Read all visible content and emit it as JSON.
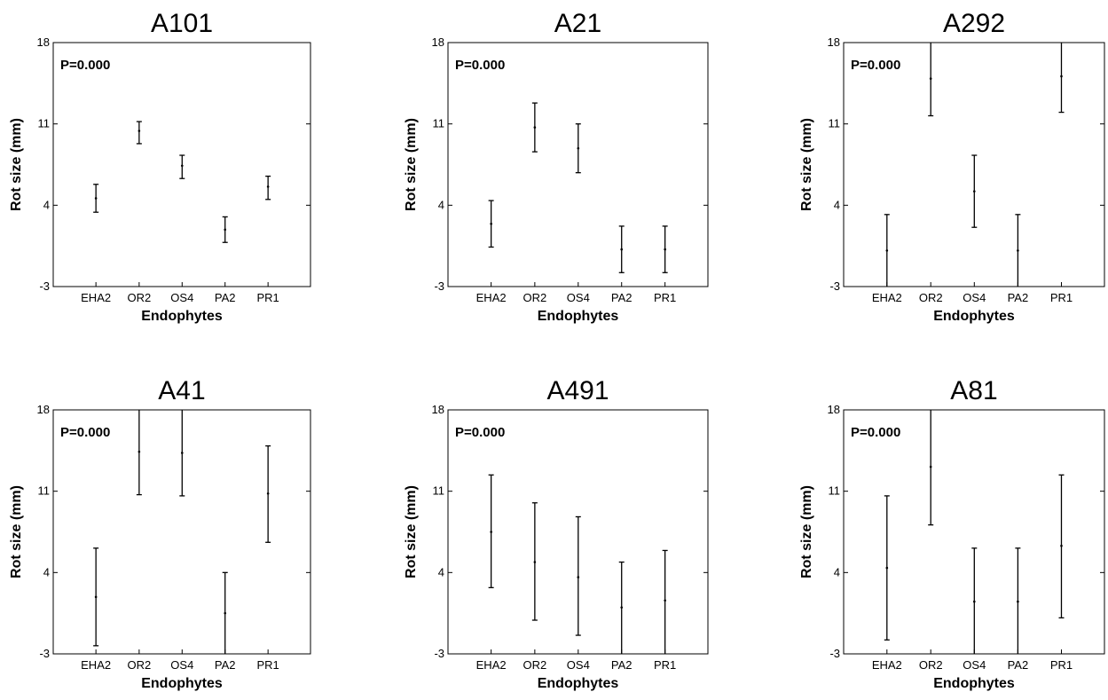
{
  "chart_data": [
    {
      "type": "interval",
      "title": "A101",
      "annotation": "P=0.000",
      "xlabel": "Endophytes",
      "ylabel": "Rot  size (mm)",
      "ylim": [
        -3,
        18
      ],
      "yticks": [
        "18",
        "11",
        "4",
        "-3"
      ],
      "categories": [
        "EHA2",
        "OR2",
        "OS4",
        "PA2",
        "PR1"
      ],
      "intervals": [
        {
          "low": 3.4,
          "mean": 4.6,
          "high": 5.8
        },
        {
          "low": 9.3,
          "mean": 10.4,
          "high": 11.2
        },
        {
          "low": 6.3,
          "mean": 7.4,
          "high": 8.3
        },
        {
          "low": 0.8,
          "mean": 1.9,
          "high": 3.0
        },
        {
          "low": 4.5,
          "mean": 5.6,
          "high": 6.5
        }
      ]
    },
    {
      "type": "interval",
      "title": "A21",
      "annotation": "P=0.000",
      "xlabel": "Endophytes",
      "ylabel": "Rot  size (mm)",
      "ylim": [
        -3,
        18
      ],
      "yticks": [
        "18",
        "11",
        "4",
        "-3"
      ],
      "categories": [
        "EHA2",
        "OR2",
        "OS4",
        "PA2",
        "PR1"
      ],
      "intervals": [
        {
          "low": 0.4,
          "mean": 2.4,
          "high": 4.4
        },
        {
          "low": 8.6,
          "mean": 10.7,
          "high": 12.8
        },
        {
          "low": 6.8,
          "mean": 8.9,
          "high": 11.0
        },
        {
          "low": -1.8,
          "mean": 0.2,
          "high": 2.2
        },
        {
          "low": -1.8,
          "mean": 0.2,
          "high": 2.2
        }
      ]
    },
    {
      "type": "interval",
      "title": "A292",
      "annotation": "P=0.000",
      "xlabel": "Endophytes",
      "ylabel": "Rot  size (mm)",
      "ylim": [
        -3,
        18
      ],
      "yticks": [
        "18",
        "11",
        "4",
        "-3"
      ],
      "categories": [
        "EHA2",
        "OR2",
        "OS4",
        "PA2",
        "PR1"
      ],
      "intervals": [
        {
          "low": -3.0,
          "mean": 0.1,
          "high": 3.2
        },
        {
          "low": 11.7,
          "mean": 14.9,
          "high": 18.0
        },
        {
          "low": 2.1,
          "mean": 5.2,
          "high": 8.3
        },
        {
          "low": -3.0,
          "mean": 0.1,
          "high": 3.2
        },
        {
          "low": 12.0,
          "mean": 15.1,
          "high": 18.0
        }
      ]
    },
    {
      "type": "interval",
      "title": "A41",
      "annotation": "P=0.000",
      "xlabel": "Endophytes",
      "ylabel": "Rot  size (mm)",
      "ylim": [
        -3,
        18
      ],
      "yticks": [
        "18",
        "11",
        "4",
        "-3"
      ],
      "categories": [
        "EHA2",
        "OR2",
        "OS4",
        "PA2",
        "PR1"
      ],
      "intervals": [
        {
          "low": -2.3,
          "mean": 1.9,
          "high": 6.1
        },
        {
          "low": 10.7,
          "mean": 14.4,
          "high": 18.0
        },
        {
          "low": 10.6,
          "mean": 14.3,
          "high": 18.0
        },
        {
          "low": -3.0,
          "mean": 0.5,
          "high": 4.0
        },
        {
          "low": 6.6,
          "mean": 10.8,
          "high": 14.9
        }
      ]
    },
    {
      "type": "interval",
      "title": "A491",
      "annotation": "P=0.000",
      "xlabel": "Endophytes",
      "ylabel": "Rot  size (mm)",
      "ylim": [
        -3,
        18
      ],
      "yticks": [
        "18",
        "11",
        "4",
        "-3"
      ],
      "categories": [
        "EHA2",
        "OR2",
        "OS4",
        "PA2",
        "PR1"
      ],
      "intervals": [
        {
          "low": 2.7,
          "mean": 7.5,
          "high": 12.4
        },
        {
          "low": -0.1,
          "mean": 4.9,
          "high": 10.0
        },
        {
          "low": -1.4,
          "mean": 3.6,
          "high": 8.8
        },
        {
          "low": -3.0,
          "mean": 1.0,
          "high": 4.9
        },
        {
          "low": -3.0,
          "mean": 1.6,
          "high": 5.9
        }
      ]
    },
    {
      "type": "interval",
      "title": "A81",
      "annotation": "P=0.000",
      "xlabel": "Endophytes",
      "ylabel": "Rot  size (mm)",
      "ylim": [
        -3,
        18
      ],
      "yticks": [
        "18",
        "11",
        "4",
        "-3"
      ],
      "categories": [
        "EHA2",
        "OR2",
        "OS4",
        "PA2",
        "PR1"
      ],
      "intervals": [
        {
          "low": -1.8,
          "mean": 4.4,
          "high": 10.6
        },
        {
          "low": 8.1,
          "mean": 13.1,
          "high": 18.0
        },
        {
          "low": -3.0,
          "mean": 1.5,
          "high": 6.1
        },
        {
          "low": -3.0,
          "mean": 1.5,
          "high": 6.1
        },
        {
          "low": 0.1,
          "mean": 6.3,
          "high": 12.4
        }
      ]
    }
  ]
}
